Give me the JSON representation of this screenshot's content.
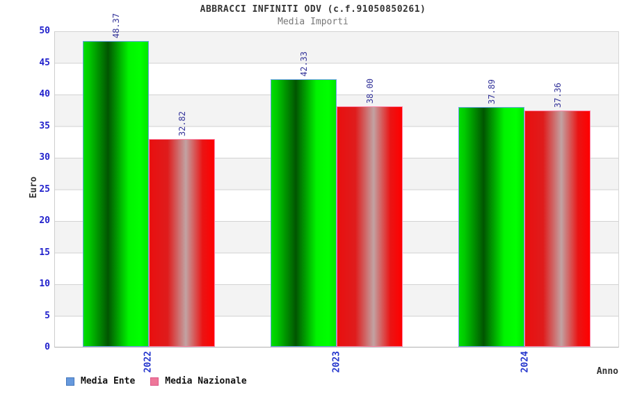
{
  "header": {
    "title": "ABBRACCI INFINITI ODV (c.f.91050850261)",
    "subtitle": "Media Importi"
  },
  "axes": {
    "y_title": "Euro",
    "x_title": "Anno"
  },
  "legend": [
    {
      "label": "Media Ente",
      "swatch_color": "#6699dd",
      "border_color": "#4477bb"
    },
    {
      "label": "Media Nazionale",
      "swatch_color": "#ee7799",
      "border_color": "#dd5588"
    }
  ],
  "colors": {
    "bar_ente_fill": "#00ff00",
    "bar_ente_outline": "#6aa2e8",
    "bar_nazionale_fill": "#ff0000",
    "bar_nazionale_outline": "#ff87aa",
    "tick_label": "#2222cc",
    "value_label": "#333399",
    "band_gray": "#f3f3f3",
    "gridline": "#d2d2d2",
    "title_text": "#333333",
    "subtitle_text": "#777777"
  },
  "chart_data": {
    "type": "bar",
    "title": "ABBRACCI INFINITI ODV (c.f.91050850261)",
    "subtitle": "Media Importi",
    "categories": [
      "2022",
      "2023",
      "2024"
    ],
    "series": [
      {
        "name": "Media Ente",
        "values": [
          48.37,
          42.33,
          37.89
        ]
      },
      {
        "name": "Media Nazionale",
        "values": [
          32.82,
          38.0,
          37.36
        ]
      }
    ],
    "value_labels": [
      "48.37",
      "42.33",
      "37.89",
      "32.82",
      "38.00",
      "37.36"
    ],
    "xlabel": "Anno",
    "ylabel": "Euro",
    "ylim": [
      0,
      50
    ],
    "ytick_step": 5,
    "grid": "horizontal-bands",
    "legend_position": "bottom-left",
    "bar_orientation": "vertical"
  }
}
